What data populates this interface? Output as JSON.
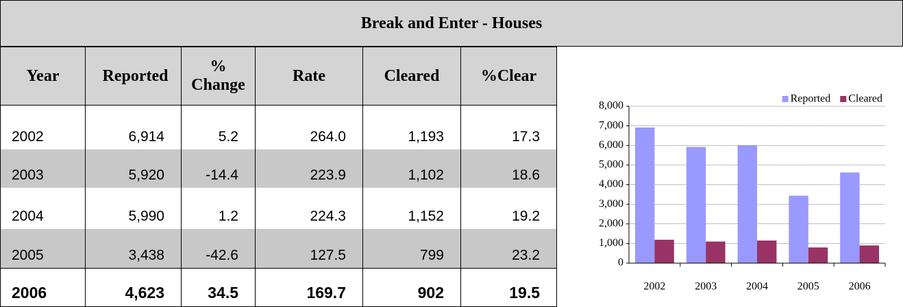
{
  "title": "Break and Enter - Houses",
  "table": {
    "columns": [
      "Year",
      "Reported",
      "% Change",
      "Rate",
      "Cleared",
      "%Clear"
    ],
    "rows": [
      [
        "2002",
        "6,914",
        "5.2",
        "264.0",
        "1,193",
        "17.3"
      ],
      [
        "2003",
        "5,920",
        "-14.4",
        "223.9",
        "1,102",
        "18.6"
      ],
      [
        "2004",
        "5,990",
        "1.2",
        "224.3",
        "1,152",
        "19.2"
      ],
      [
        "2005",
        "3,438",
        "-42.6",
        "127.5",
        "799",
        "23.2"
      ],
      [
        "2006",
        "4,623",
        "34.5",
        "169.7",
        "902",
        "19.5"
      ]
    ]
  },
  "chart_data": {
    "type": "bar",
    "categories": [
      "2002",
      "2003",
      "2004",
      "2005",
      "2006"
    ],
    "series": [
      {
        "name": "Reported",
        "color": "#9999ff",
        "values": [
          6914,
          5920,
          5990,
          3438,
          4623
        ]
      },
      {
        "name": "Cleared",
        "color": "#993366",
        "values": [
          1193,
          1102,
          1152,
          799,
          902
        ]
      }
    ],
    "ylim": [
      0,
      8000
    ],
    "yticks": [
      0,
      {
        "value": 1000,
        "label": "1,000"
      },
      {
        "value": 2000,
        "label": "2,000"
      },
      {
        "value": 3000,
        "label": "3,000"
      },
      {
        "value": 4000,
        "label": "4,000"
      },
      {
        "value": 5000,
        "label": "5,000"
      },
      {
        "value": 6000,
        "label": "6,000"
      },
      {
        "value": 7000,
        "label": "7,000"
      },
      {
        "value": 8000,
        "label": "8,000"
      }
    ],
    "grid": true,
    "legend": "top-right"
  }
}
